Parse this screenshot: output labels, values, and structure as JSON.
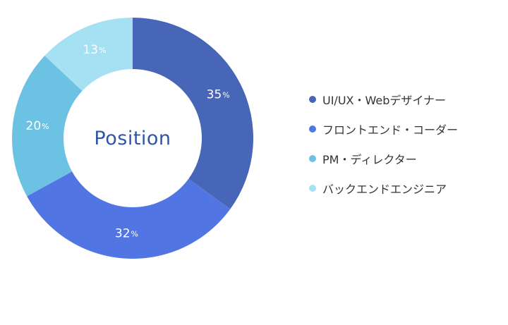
{
  "chart_data": {
    "type": "pie",
    "variant": "donut",
    "center_label": "Position",
    "unit": "%",
    "series": [
      {
        "name": "UI/UX・Webデザイナー",
        "value": 35,
        "color": "#4766b8"
      },
      {
        "name": "フロントエンド・コーダー",
        "value": 32,
        "color": "#5176e3"
      },
      {
        "name": "PM・ディレクター",
        "value": 20,
        "color": "#6cc2e2"
      },
      {
        "name": "バックエンドエンジニア",
        "value": 13,
        "color": "#a6e0f3"
      }
    ],
    "slice_labels": [
      {
        "number": "35",
        "unit": "%"
      },
      {
        "number": "32",
        "unit": "%"
      },
      {
        "number": "20",
        "unit": "%"
      },
      {
        "number": "13",
        "unit": "%"
      }
    ],
    "legend_placement": "right"
  }
}
